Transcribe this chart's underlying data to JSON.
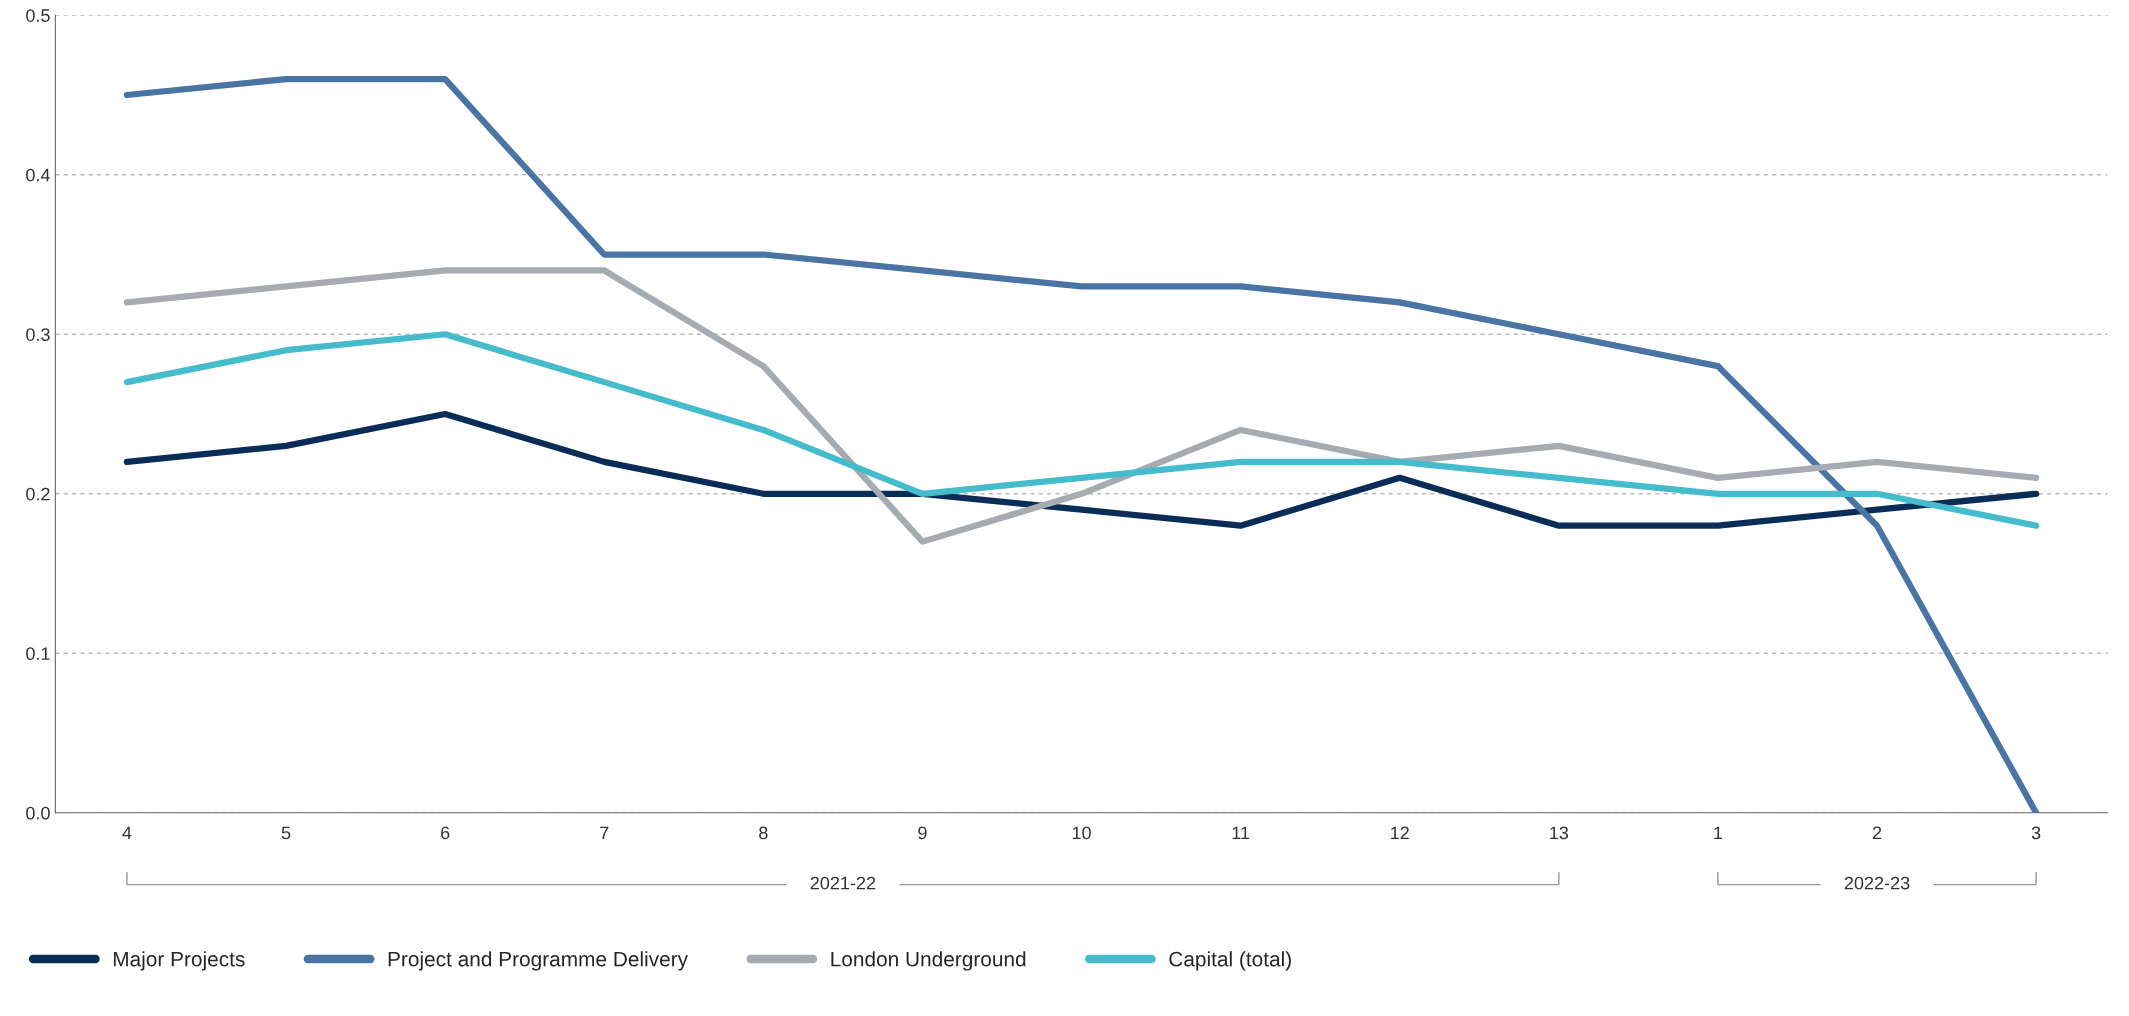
{
  "chart_data": {
    "type": "line",
    "categories": [
      "4",
      "5",
      "6",
      "7",
      "8",
      "9",
      "10",
      "11",
      "12",
      "13",
      "1",
      "2",
      "3"
    ],
    "series": [
      {
        "name": "Major Projects",
        "color": "#0a2d57",
        "values": [
          0.22,
          0.23,
          0.25,
          0.22,
          0.2,
          0.2,
          0.19,
          0.18,
          0.21,
          0.18,
          0.18,
          0.19,
          0.2
        ]
      },
      {
        "name": "Project and Programme Delivery",
        "color": "#4a74a3",
        "values": [
          0.45,
          0.46,
          0.46,
          0.35,
          0.35,
          0.34,
          0.33,
          0.33,
          0.32,
          0.3,
          0.28,
          0.18,
          0.0
        ]
      },
      {
        "name": "London Underground",
        "color": "#a5abb0",
        "values": [
          0.32,
          0.33,
          0.34,
          0.34,
          0.28,
          0.17,
          0.2,
          0.24,
          0.22,
          0.23,
          0.21,
          0.22,
          0.21
        ]
      },
      {
        "name": "Capital (total)",
        "color": "#45bccb",
        "values": [
          0.27,
          0.29,
          0.3,
          0.27,
          0.24,
          0.2,
          0.21,
          0.22,
          0.22,
          0.21,
          0.2,
          0.2,
          0.18
        ]
      }
    ],
    "ylim": [
      0,
      0.5
    ],
    "yticks": [
      {
        "value": 0,
        "label": "0.0"
      },
      0.1,
      0.2,
      0.3,
      0.4,
      0.5
    ],
    "grid": "y",
    "legend": "bottom",
    "marker": "none",
    "line_style": "solid",
    "annotations": [
      "2021-22",
      "2022-23"
    ]
  }
}
